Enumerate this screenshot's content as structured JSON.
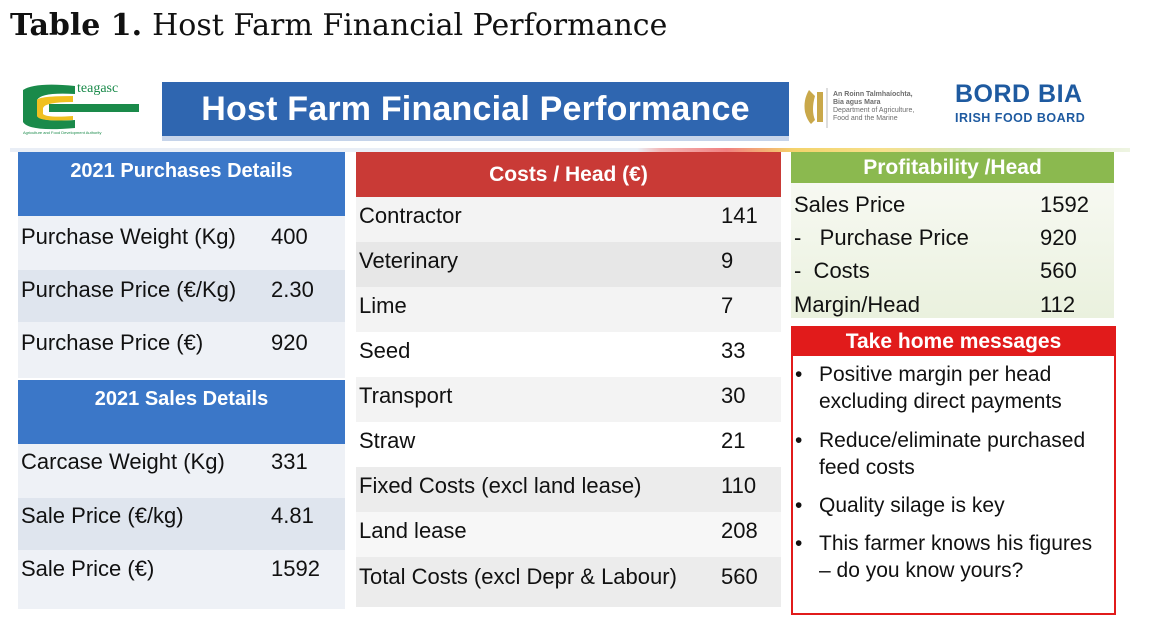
{
  "caption": {
    "label": "Table 1.",
    "title": "Host Farm Financial Performance"
  },
  "header": {
    "teagasc_logo_text": "teagasc",
    "teagasc_tagline": "Agriculture and Food Development Authority",
    "banner_title": "Host Farm Financial Performance",
    "dept_lines": [
      "An Roinn Talmhaíochta,",
      "Bia agus Mara",
      "Department of Agriculture,",
      "Food and the Marine"
    ],
    "bordbia_main": "BORD BIA",
    "bordbia_sub": "IRISH FOOD BOARD"
  },
  "purchases": {
    "heading": "2021 Purchases Details",
    "rows": [
      {
        "label": "Purchase Weight (Kg)",
        "value": "400"
      },
      {
        "label": "Purchase Price (€/Kg)",
        "value": "2.30"
      },
      {
        "label": "Purchase Price (€)",
        "value": "920"
      }
    ]
  },
  "sales": {
    "heading": "2021 Sales Details",
    "rows": [
      {
        "label": "Carcase Weight (Kg)",
        "value": "331"
      },
      {
        "label": "Sale Price (€/kg)",
        "value": "4.81"
      },
      {
        "label": "Sale Price (€)",
        "value": "1592"
      }
    ]
  },
  "costs": {
    "heading": "Costs / Head (€)",
    "rows": [
      {
        "label": "Contractor",
        "value": "141"
      },
      {
        "label": "Veterinary",
        "value": "9"
      },
      {
        "label": "Lime",
        "value": "7"
      },
      {
        "label": "Seed",
        "value": "33"
      },
      {
        "label": "Transport",
        "value": "30"
      },
      {
        "label": "Straw",
        "value": "21"
      },
      {
        "label": "Fixed Costs (excl land lease)",
        "value": "110"
      },
      {
        "label": "Land lease",
        "value": "208"
      },
      {
        "label": "Total Costs (excl Depr & Labour)",
        "value": "560"
      }
    ]
  },
  "profitability": {
    "heading": "Profitability /Head",
    "rows": [
      {
        "label": "Sales Price",
        "value": "1592"
      },
      {
        "label": "-   Purchase Price",
        "value": "920"
      },
      {
        "label": "-  Costs",
        "value": "560"
      },
      {
        "label": "Margin/Head",
        "value": "112"
      }
    ]
  },
  "messages": {
    "heading": "Take home messages",
    "items": [
      "Positive margin per head excluding direct payments",
      "Reduce/eliminate purchased feed costs",
      "Quality silage is key",
      "This farmer knows his figures – do you know yours?"
    ]
  },
  "colors": {
    "blue": "#3b77c8",
    "banner_blue": "#2f66b0",
    "red": "#c93a36",
    "green": "#8bb94f",
    "message_red": "#e11b1b"
  }
}
